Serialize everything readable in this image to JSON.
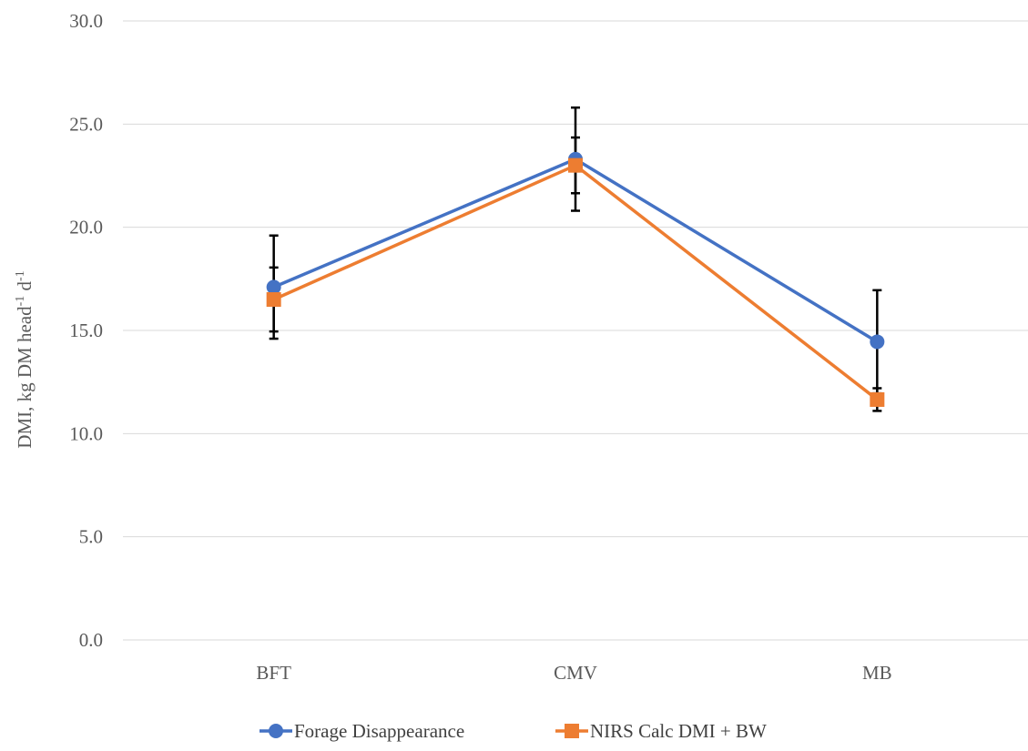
{
  "chart_data": {
    "type": "line",
    "categories": [
      "BFT",
      "CMV",
      "MB"
    ],
    "ylabel": {
      "parts": [
        {
          "text": "DMI, kg DM head",
          "sup": false
        },
        {
          "text": "-1",
          "sup": true
        },
        {
          "text": " d",
          "sup": false
        },
        {
          "text": "-1",
          "sup": true
        }
      ]
    },
    "ylim": [
      0,
      30
    ],
    "yticks": [
      0,
      5,
      10,
      15,
      20,
      25,
      30
    ],
    "ytick_labels": [
      "0.0",
      "5.0",
      "10.0",
      "15.0",
      "20.0",
      "25.0",
      "30.0"
    ],
    "grid": true,
    "legend_position": "bottom",
    "series": [
      {
        "name": "Forage Disappearance",
        "color": "#4472C4",
        "marker": "circle",
        "values": [
          17.1,
          23.3,
          14.45
        ],
        "error": [
          2.5,
          2.5,
          2.5
        ]
      },
      {
        "name": "NIRS Calc DMI + BW",
        "color": "#ED7D31",
        "marker": "square",
        "values": [
          16.5,
          23.0,
          11.65
        ],
        "error": [
          1.55,
          1.35,
          0.55
        ]
      }
    ]
  }
}
